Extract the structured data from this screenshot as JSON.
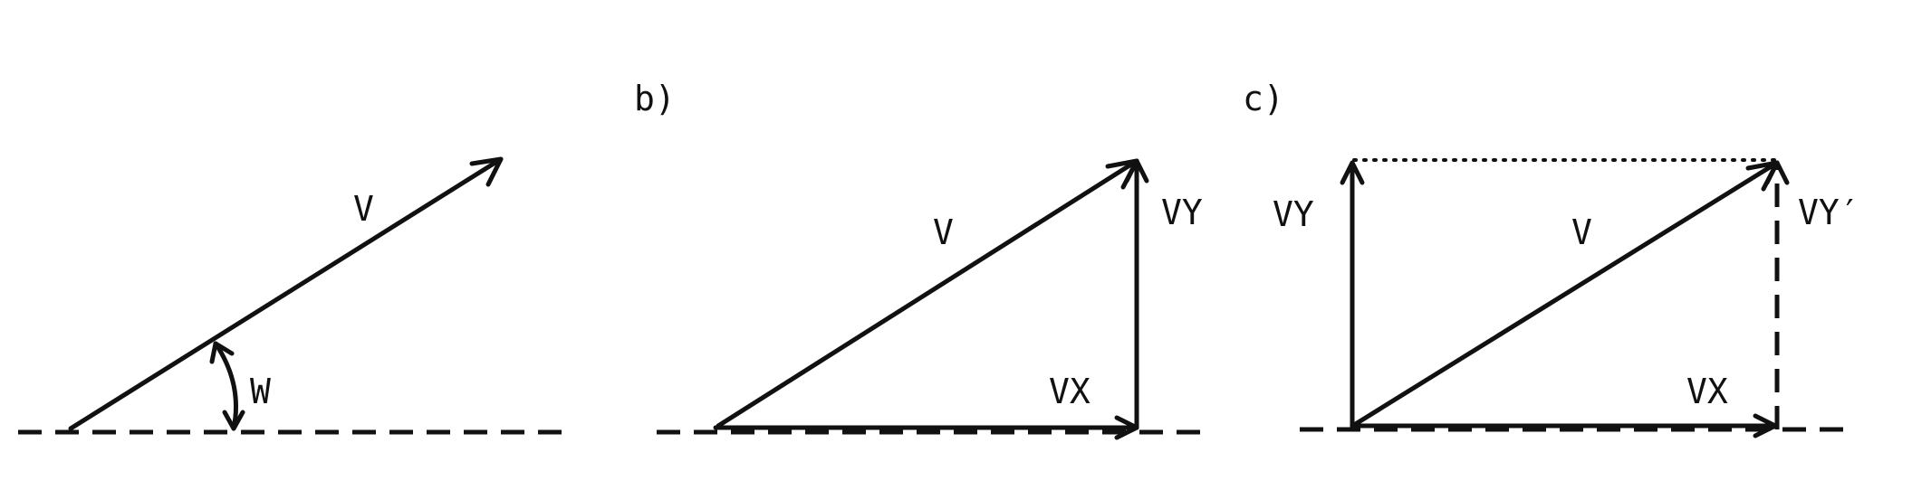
{
  "panels": [
    {
      "id": "a",
      "label": "",
      "vector": "V",
      "angle": "W"
    },
    {
      "id": "b",
      "label": "b)",
      "vector": "V",
      "x_component": "VX",
      "y_component": "VY"
    },
    {
      "id": "c",
      "label": "c)",
      "vector": "V",
      "x_component": "VX",
      "y_component_left": "VY",
      "y_component_right": "VY′"
    }
  ]
}
